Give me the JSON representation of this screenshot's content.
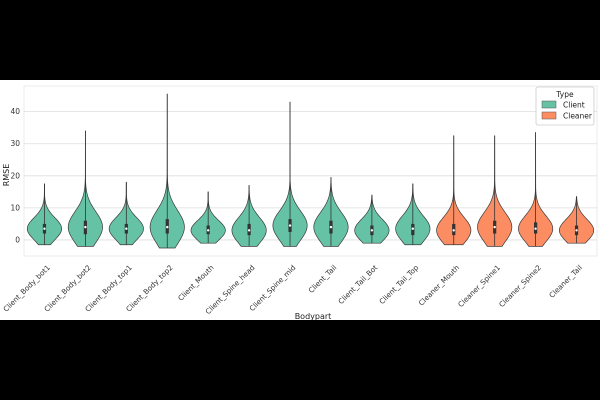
{
  "chart_data": {
    "type": "violin",
    "xlabel": "Bodypart",
    "ylabel": "RMSE",
    "ylim": [
      -5,
      48
    ],
    "yticks": [
      0,
      10,
      20,
      30,
      40
    ],
    "grid": true,
    "legend": {
      "title": "Type",
      "position": "top-right",
      "entries": [
        {
          "name": "Client",
          "color": "#66c2a5"
        },
        {
          "name": "Cleaner",
          "color": "#fc8d62"
        }
      ]
    },
    "categories": [
      {
        "label": "Client_Body_bot1",
        "type": "Client",
        "min": -1.5,
        "max": 17.5,
        "q1": 2.0,
        "median": 3.5,
        "q3": 5.0,
        "mode": 3.5
      },
      {
        "label": "Client_Body_bot2",
        "type": "Client",
        "min": -2.0,
        "max": 34.0,
        "q1": 1.8,
        "median": 4.0,
        "q3": 6.0,
        "mode": 4.0
      },
      {
        "label": "Client_Body_top1",
        "type": "Client",
        "min": -1.5,
        "max": 18.0,
        "q1": 2.0,
        "median": 3.5,
        "q3": 5.0,
        "mode": 3.5
      },
      {
        "label": "Client_Body_top2",
        "type": "Client",
        "min": -2.5,
        "max": 45.5,
        "q1": 2.0,
        "median": 4.0,
        "q3": 6.5,
        "mode": 4.0
      },
      {
        "label": "Client_Mouth",
        "type": "Client",
        "min": -1.0,
        "max": 15.0,
        "q1": 1.8,
        "median": 3.0,
        "q3": 4.5,
        "mode": 3.0
      },
      {
        "label": "Client_Spine_head",
        "type": "Client",
        "min": -2.0,
        "max": 17.0,
        "q1": 1.5,
        "median": 3.0,
        "q3": 5.0,
        "mode": 3.0
      },
      {
        "label": "Client_Spine_mid",
        "type": "Client",
        "min": -2.0,
        "max": 43.0,
        "q1": 2.5,
        "median": 4.5,
        "q3": 6.5,
        "mode": 4.5
      },
      {
        "label": "Client_Tail",
        "type": "Client",
        "min": -2.0,
        "max": 19.5,
        "q1": 2.0,
        "median": 4.0,
        "q3": 6.0,
        "mode": 4.0
      },
      {
        "label": "Client_Tail_Bot",
        "type": "Client",
        "min": -1.0,
        "max": 14.0,
        "q1": 1.5,
        "median": 3.0,
        "q3": 4.5,
        "mode": 3.0
      },
      {
        "label": "Client_Tail_Top",
        "type": "Client",
        "min": -1.5,
        "max": 17.5,
        "q1": 1.5,
        "median": 3.5,
        "q3": 5.0,
        "mode": 3.5
      },
      {
        "label": "Cleaner_Mouth",
        "type": "Cleaner",
        "min": -1.5,
        "max": 32.5,
        "q1": 1.5,
        "median": 3.0,
        "q3": 5.0,
        "mode": 3.0
      },
      {
        "label": "Cleaner_Spine1",
        "type": "Cleaner",
        "min": -2.0,
        "max": 32.5,
        "q1": 2.0,
        "median": 4.0,
        "q3": 6.0,
        "mode": 4.0
      },
      {
        "label": "Cleaner_Spine2",
        "type": "Cleaner",
        "min": -2.0,
        "max": 33.5,
        "q1": 2.0,
        "median": 3.5,
        "q3": 5.5,
        "mode": 3.5
      },
      {
        "label": "Cleaner_Tail",
        "type": "Cleaner",
        "min": -1.0,
        "max": 13.5,
        "q1": 1.5,
        "median": 3.0,
        "q3": 4.5,
        "mode": 3.0
      }
    ]
  }
}
